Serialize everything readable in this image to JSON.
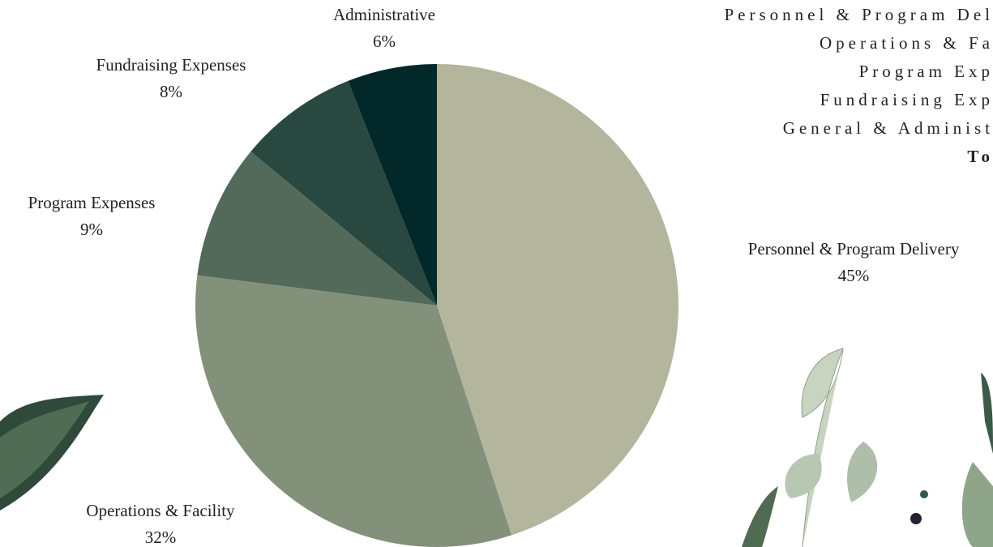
{
  "chart_data": {
    "type": "pie",
    "categories": [
      "Personnel & Program Delivery",
      "Operations & Facility",
      "Program Expenses",
      "Fundraising Expenses",
      "Administrative"
    ],
    "values": [
      45,
      32,
      9,
      8,
      6
    ],
    "value_labels": [
      "45%",
      "32%",
      "9%",
      "8%",
      "6%"
    ],
    "colors": [
      "#b3b59c",
      "#83917a",
      "#536a5a",
      "#284840",
      "#03282a"
    ]
  },
  "side_text": [
    "Personnel & Program Del",
    "Operations & Fa",
    "Program Exp",
    "Fundraising Exp",
    "General & Administ",
    "To"
  ]
}
